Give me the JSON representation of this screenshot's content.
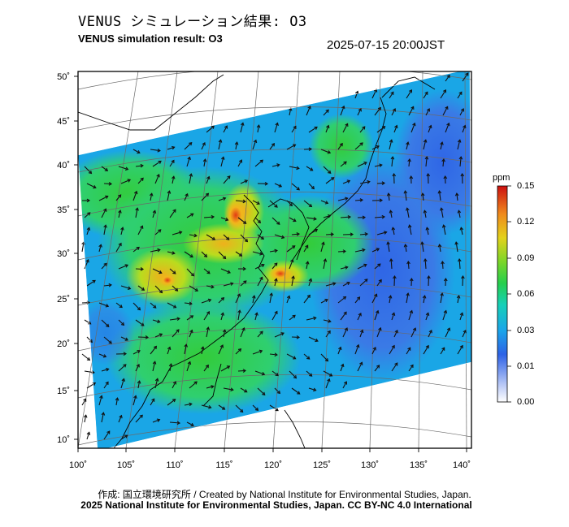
{
  "header": {
    "title_jp": "VENUS シミュレーション結果: O3",
    "title_en": "VENUS simulation result: O3",
    "timestamp": "2025-07-15 20:00JST"
  },
  "map": {
    "lon_ticks": [
      "100˚",
      "105˚",
      "110˚",
      "115˚",
      "120˚",
      "125˚",
      "130˚",
      "135˚",
      "140˚"
    ],
    "lat_ticks": [
      "50˚",
      "45˚",
      "40˚",
      "35˚",
      "30˚",
      "25˚",
      "20˚",
      "15˚",
      "10˚"
    ],
    "lon_range": [
      100,
      141
    ],
    "lat_range": [
      9,
      51
    ]
  },
  "colorbar": {
    "unit": "ppm",
    "ticks": [
      "0.15",
      "0.12",
      "0.09",
      "0.06",
      "0.03",
      "0.01",
      "0.00"
    ],
    "colors": [
      "#ffffff",
      "#9fb4f5",
      "#2f6ae8",
      "#14b3e6",
      "#1fd08a",
      "#33c93a",
      "#b9dc1e",
      "#f2b51c",
      "#e8521b",
      "#c81010"
    ]
  },
  "footer": {
    "credit_line": "作成: 国立環境研究所 / Created by National Institute for Environmental Studies, Japan.",
    "copyright_line": "2025 National Institute for Environmental Studies, Japan. CC BY-NC 4.0 International"
  }
}
